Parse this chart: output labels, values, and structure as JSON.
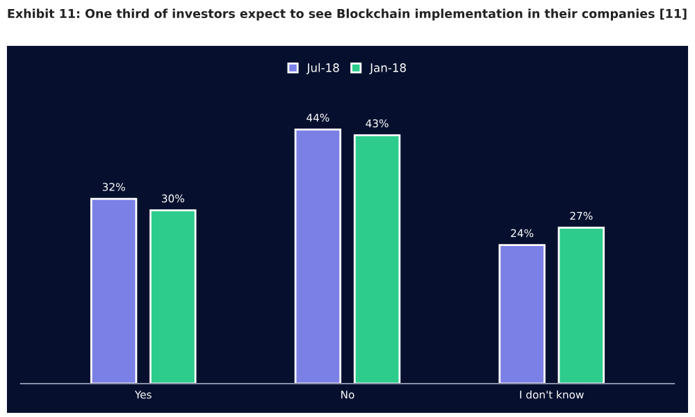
{
  "chart_data": {
    "type": "bar",
    "title": "Exhibit 11: One third of investors expect to see Blockchain implementation in their companies [11]",
    "categories": [
      "Yes",
      "No",
      "I don't know"
    ],
    "series": [
      {
        "name": "Jul-18",
        "color": "#7b80e6",
        "values": [
          32,
          44,
          24
        ],
        "value_labels": [
          "32%",
          "44%",
          "24%"
        ]
      },
      {
        "name": "Jan-18",
        "color": "#2ecc8c",
        "values": [
          30,
          43,
          27
        ],
        "value_labels": [
          "30%",
          "43%",
          "27%"
        ]
      }
    ],
    "legend": "top",
    "grid": false
  }
}
